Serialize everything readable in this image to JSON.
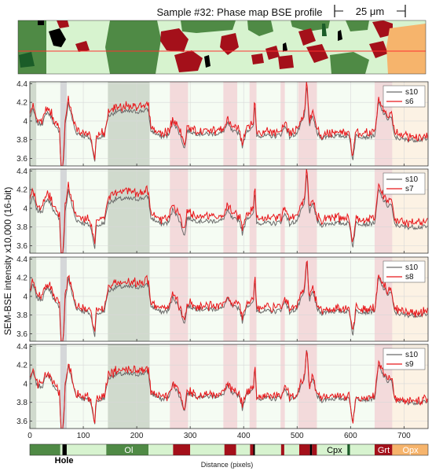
{
  "header": {
    "title": "Sample #32: Phase map BSE profile",
    "scale_bar_label": "25 μm"
  },
  "colors": {
    "reference_series": "#6b6b6b",
    "compare_series": "#e8171b",
    "Ol_fill": "#4f8a45",
    "Ol_band": "#c9d3c6",
    "light_phase": "#d7f3cf",
    "Hole": "#000000",
    "Hole_band": "#cfd0d4",
    "Grt": "#a4101a",
    "Grt_band": "#f2d3d6",
    "Opx": "#f6b46c",
    "Opx_band": "#fdf0e0",
    "Cpx": "#1b5c28",
    "map_line": "#ff3030"
  },
  "chart_data": {
    "type": "line",
    "ylabel": "SEM-BSE intensity x10,000 (16-bit)",
    "xlabel": "Distance (pixels)",
    "xlim": [
      0,
      745
    ],
    "ylim": [
      3.52,
      4.42
    ],
    "xticks": [
      0,
      100,
      200,
      300,
      400,
      500,
      600,
      700
    ],
    "yticks": [
      3.6,
      3.8,
      4.0,
      4.2,
      4.4
    ],
    "ytick_labels": [
      "3.6",
      "3.8",
      "4",
      "4.2",
      "4.4"
    ],
    "legend_position": "top-right",
    "reference_series_name": "s10",
    "panels": [
      {
        "compare_name": "s6",
        "offset": 0.04
      },
      {
        "compare_name": "s7",
        "offset": 0.055
      },
      {
        "compare_name": "s8",
        "offset": 0.035
      },
      {
        "compare_name": "s9",
        "offset": 0.025
      }
    ],
    "profile_nodes": [
      [
        0,
        4.04
      ],
      [
        6,
        4.12
      ],
      [
        14,
        3.97
      ],
      [
        24,
        3.98
      ],
      [
        32,
        4.1
      ],
      [
        40,
        4.05
      ],
      [
        48,
        3.92
      ],
      [
        56,
        3.9
      ],
      [
        58,
        3.45
      ],
      [
        62,
        3.45
      ],
      [
        66,
        3.95
      ],
      [
        72,
        4.2
      ],
      [
        78,
        4.05
      ],
      [
        86,
        3.88
      ],
      [
        100,
        3.84
      ],
      [
        112,
        3.82
      ],
      [
        118,
        3.7
      ],
      [
        121,
        3.55
      ],
      [
        124,
        3.8
      ],
      [
        130,
        3.82
      ],
      [
        140,
        3.85
      ],
      [
        146,
        4.05
      ],
      [
        160,
        4.1
      ],
      [
        180,
        4.1
      ],
      [
        200,
        4.1
      ],
      [
        222,
        4.12
      ],
      [
        226,
        3.9
      ],
      [
        245,
        3.83
      ],
      [
        260,
        3.85
      ],
      [
        268,
        4.0
      ],
      [
        280,
        3.87
      ],
      [
        290,
        3.7
      ],
      [
        294,
        3.9
      ],
      [
        310,
        3.87
      ],
      [
        330,
        3.86
      ],
      [
        360,
        3.87
      ],
      [
        370,
        3.97
      ],
      [
        380,
        3.88
      ],
      [
        392,
        3.88
      ],
      [
        398,
        3.72
      ],
      [
        405,
        3.9
      ],
      [
        418,
        3.92
      ],
      [
        421,
        4.2
      ],
      [
        424,
        3.85
      ],
      [
        440,
        3.84
      ],
      [
        460,
        3.84
      ],
      [
        470,
        3.86
      ],
      [
        478,
        3.95
      ],
      [
        486,
        3.83
      ],
      [
        500,
        3.87
      ],
      [
        506,
        3.95
      ],
      [
        514,
        4.05
      ],
      [
        518,
        4.4
      ],
      [
        523,
        3.95
      ],
      [
        530,
        4.05
      ],
      [
        537,
        3.87
      ],
      [
        545,
        3.82
      ],
      [
        560,
        3.84
      ],
      [
        580,
        3.84
      ],
      [
        598,
        3.84
      ],
      [
        604,
        3.58
      ],
      [
        610,
        3.84
      ],
      [
        620,
        3.84
      ],
      [
        632,
        3.83
      ],
      [
        646,
        3.85
      ],
      [
        652,
        4.2
      ],
      [
        660,
        4.1
      ],
      [
        670,
        4.02
      ],
      [
        676,
        4.05
      ],
      [
        682,
        3.83
      ],
      [
        700,
        3.8
      ],
      [
        720,
        3.8
      ],
      [
        745,
        3.8
      ]
    ],
    "bands": [
      {
        "phase": "Ol",
        "start": 0,
        "end": 12
      },
      {
        "phase": "Hole",
        "start": 57,
        "end": 69
      },
      {
        "phase": "Ol",
        "start": 146,
        "end": 224
      },
      {
        "phase": "Grt",
        "start": 262,
        "end": 296
      },
      {
        "phase": "Grt",
        "start": 362,
        "end": 388
      },
      {
        "phase": "Grt",
        "start": 411,
        "end": 424
      },
      {
        "phase": "Grt",
        "start": 469,
        "end": 477
      },
      {
        "phase": "Grt",
        "start": 502,
        "end": 537
      },
      {
        "phase": "Grt",
        "start": 645,
        "end": 678
      },
      {
        "phase": "Opx",
        "start": 678,
        "end": 745
      }
    ],
    "phase_strip": [
      {
        "phase": "Ol",
        "start": 0,
        "end": 57
      },
      {
        "phase": "light",
        "start": 57,
        "end": 61
      },
      {
        "phase": "Hole",
        "start": 61,
        "end": 69
      },
      {
        "phase": "light",
        "start": 69,
        "end": 143
      },
      {
        "phase": "Ol",
        "start": 143,
        "end": 222
      },
      {
        "phase": "light",
        "start": 222,
        "end": 268
      },
      {
        "phase": "Grt",
        "start": 268,
        "end": 300
      },
      {
        "phase": "light",
        "start": 300,
        "end": 364
      },
      {
        "phase": "Grt",
        "start": 364,
        "end": 386
      },
      {
        "phase": "light",
        "start": 386,
        "end": 412
      },
      {
        "phase": "Grt",
        "start": 412,
        "end": 418
      },
      {
        "phase": "Hole",
        "start": 418,
        "end": 421
      },
      {
        "phase": "light",
        "start": 421,
        "end": 470
      },
      {
        "phase": "Grt",
        "start": 470,
        "end": 476
      },
      {
        "phase": "light",
        "start": 476,
        "end": 504
      },
      {
        "phase": "Grt",
        "start": 504,
        "end": 524
      },
      {
        "phase": "Hole",
        "start": 524,
        "end": 528
      },
      {
        "phase": "Grt",
        "start": 528,
        "end": 537
      },
      {
        "phase": "light",
        "start": 537,
        "end": 594
      },
      {
        "phase": "Cpx",
        "start": 594,
        "end": 599
      },
      {
        "phase": "light",
        "start": 599,
        "end": 645
      },
      {
        "phase": "Grt",
        "start": 645,
        "end": 678
      },
      {
        "phase": "Opx",
        "start": 678,
        "end": 745
      }
    ],
    "phase_labels": [
      {
        "text": "Hole",
        "x": 64,
        "color": "#000000",
        "bold": true
      },
      {
        "text": "Ol",
        "x": 185,
        "color": "#ffffff"
      },
      {
        "text": "Cpx",
        "x": 570,
        "color": "#000000"
      },
      {
        "text": "Grt",
        "x": 662,
        "color": "#ffffff"
      },
      {
        "text": "Opx",
        "x": 712,
        "color": "#ffffff"
      }
    ]
  }
}
